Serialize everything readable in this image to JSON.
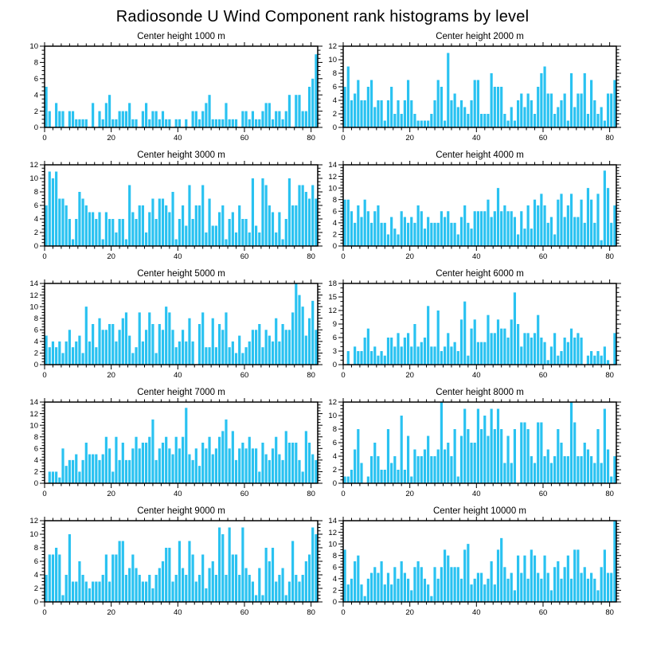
{
  "page": {
    "title": "Radiosonde U Wind Component rank histograms by level"
  },
  "colors": {
    "bar": "#29C2F1",
    "axis": "#000000",
    "background": "#FFFFFF"
  },
  "chart_data": [
    {
      "type": "bar",
      "title": "Center height 1000 m",
      "xlabel": "",
      "ylabel": "",
      "xlim": [
        0,
        82
      ],
      "ylim": [
        0,
        10
      ],
      "xticks": [
        0,
        20,
        40,
        60,
        80
      ],
      "ytick_step": 2,
      "yminor_step": 0.5,
      "xminor_step": 2.5,
      "grid": false,
      "legend": "none",
      "values": [
        5,
        2,
        0,
        3,
        2,
        2,
        0,
        2,
        2,
        1,
        1,
        1,
        1,
        0,
        3,
        0,
        2,
        1,
        3,
        4,
        1,
        1,
        2,
        2,
        2,
        3,
        1,
        1,
        0,
        2,
        3,
        1,
        2,
        2,
        1,
        2,
        1,
        1,
        0,
        1,
        1,
        0,
        1,
        0,
        2,
        2,
        1,
        2,
        3,
        4,
        1,
        1,
        1,
        1,
        3,
        1,
        1,
        1,
        0,
        2,
        2,
        1,
        2,
        1,
        1,
        2,
        3,
        3,
        1,
        2,
        2,
        1,
        2,
        4,
        0,
        4,
        4,
        2,
        2,
        5,
        6,
        9
      ]
    },
    {
      "type": "bar",
      "title": "Center height 2000 m",
      "xlabel": "",
      "ylabel": "",
      "xlim": [
        0,
        82
      ],
      "ylim": [
        0,
        12
      ],
      "xticks": [
        0,
        20,
        40,
        60,
        80
      ],
      "ytick_step": 2,
      "yminor_step": 0.5,
      "xminor_step": 2.5,
      "grid": false,
      "legend": "none",
      "values": [
        6,
        9,
        4,
        5,
        7,
        4,
        4,
        6,
        7,
        3,
        4,
        4,
        1,
        4,
        6,
        2,
        4,
        2,
        4,
        7,
        4,
        2,
        1,
        1,
        1,
        1,
        2,
        4,
        7,
        6,
        1,
        11,
        4,
        5,
        3,
        4,
        3,
        2,
        4,
        7,
        7,
        2,
        2,
        2,
        8,
        6,
        6,
        6,
        2,
        1,
        3,
        1,
        4,
        5,
        3,
        5,
        4,
        2,
        6,
        8,
        9,
        5,
        5,
        2,
        3,
        4,
        5,
        1,
        8,
        3,
        5,
        5,
        8,
        2,
        7,
        4,
        2,
        3,
        1,
        5,
        5,
        7
      ]
    },
    {
      "type": "bar",
      "title": "Center height 3000 m",
      "xlabel": "",
      "ylabel": "",
      "xlim": [
        0,
        82
      ],
      "ylim": [
        0,
        12
      ],
      "xticks": [
        0,
        20,
        40,
        60,
        80
      ],
      "ytick_step": 2,
      "yminor_step": 0.5,
      "xminor_step": 2.5,
      "grid": false,
      "legend": "none",
      "values": [
        6,
        11,
        10,
        11,
        7,
        7,
        6,
        4,
        1,
        4,
        8,
        7,
        6,
        5,
        5,
        4,
        5,
        1,
        5,
        4,
        4,
        2,
        4,
        4,
        1,
        9,
        5,
        4,
        6,
        6,
        2,
        5,
        7,
        4,
        7,
        7,
        6,
        5,
        8,
        1,
        4,
        6,
        3,
        9,
        4,
        6,
        6,
        9,
        2,
        7,
        3,
        3,
        5,
        6,
        1,
        4,
        5,
        2,
        6,
        4,
        4,
        2,
        10,
        3,
        2,
        10,
        9,
        6,
        5,
        2,
        5,
        1,
        4,
        10,
        6,
        6,
        9,
        9,
        8,
        7,
        9,
        7
      ]
    },
    {
      "type": "bar",
      "title": "Center height 4000 m",
      "xlabel": "",
      "ylabel": "",
      "xlim": [
        0,
        82
      ],
      "ylim": [
        0,
        14
      ],
      "xticks": [
        0,
        20,
        40,
        60,
        80
      ],
      "ytick_step": 2,
      "yminor_step": 0.5,
      "xminor_step": 2.5,
      "grid": false,
      "legend": "none",
      "values": [
        8,
        8,
        6,
        4,
        7,
        5,
        8,
        6,
        4,
        6,
        7,
        4,
        4,
        2,
        5,
        3,
        2,
        6,
        5,
        4,
        5,
        4,
        7,
        6,
        3,
        5,
        4,
        4,
        4,
        6,
        5,
        6,
        4,
        4,
        2,
        5,
        7,
        4,
        3,
        6,
        6,
        6,
        6,
        8,
        5,
        6,
        10,
        6,
        7,
        6,
        6,
        5,
        2,
        6,
        3,
        7,
        3,
        8,
        7,
        9,
        7,
        4,
        5,
        2,
        8,
        9,
        5,
        7,
        9,
        5,
        5,
        8,
        4,
        10,
        8,
        4,
        9,
        1,
        13,
        10,
        4,
        7
      ]
    },
    {
      "type": "bar",
      "title": "Center height 5000 m",
      "xlabel": "",
      "ylabel": "",
      "xlim": [
        0,
        82
      ],
      "ylim": [
        0,
        14
      ],
      "xticks": [
        0,
        20,
        40,
        60,
        80
      ],
      "ytick_step": 2,
      "yminor_step": 0.5,
      "xminor_step": 2.5,
      "grid": false,
      "legend": "none",
      "values": [
        5,
        3,
        4,
        3,
        4,
        2,
        4,
        6,
        3,
        4,
        5,
        2,
        10,
        4,
        7,
        3,
        8,
        6,
        6,
        7,
        7,
        4,
        6,
        8,
        9,
        5,
        2,
        3,
        9,
        4,
        6,
        9,
        7,
        2,
        7,
        6,
        10,
        9,
        6,
        3,
        4,
        6,
        4,
        8,
        4,
        0,
        7,
        9,
        3,
        3,
        8,
        3,
        7,
        6,
        9,
        3,
        4,
        2,
        5,
        2,
        3,
        4,
        6,
        6,
        7,
        3,
        6,
        5,
        4,
        8,
        4,
        7,
        6,
        6,
        9,
        14,
        12,
        10,
        5,
        8,
        11,
        6
      ]
    },
    {
      "type": "bar",
      "title": "Center height 6000 m",
      "xlabel": "",
      "ylabel": "",
      "xlim": [
        0,
        82
      ],
      "ylim": [
        0,
        18
      ],
      "xticks": [
        0,
        20,
        40,
        60,
        80
      ],
      "ytick_step": 3,
      "yminor_step": 1,
      "xminor_step": 2.5,
      "grid": false,
      "legend": "none",
      "values": [
        0,
        3,
        0,
        4,
        3,
        3,
        6,
        8,
        3,
        4,
        2,
        3,
        2,
        6,
        6,
        4,
        7,
        4,
        6,
        7,
        4,
        9,
        4,
        5,
        6,
        13,
        4,
        4,
        12,
        3,
        4,
        7,
        4,
        5,
        3,
        10,
        14,
        2,
        8,
        10,
        5,
        5,
        5,
        11,
        7,
        7,
        10,
        8,
        8,
        6,
        10,
        16,
        9,
        4,
        7,
        7,
        6,
        7,
        11,
        6,
        5,
        1,
        4,
        7,
        2,
        3,
        6,
        5,
        8,
        6,
        7,
        6,
        0,
        2,
        3,
        2,
        3,
        2,
        4,
        1,
        0,
        7
      ]
    },
    {
      "type": "bar",
      "title": "Center height 7000 m",
      "xlabel": "",
      "ylabel": "",
      "xlim": [
        0,
        82
      ],
      "ylim": [
        0,
        14
      ],
      "xticks": [
        0,
        20,
        40,
        60,
        80
      ],
      "ytick_step": 2,
      "yminor_step": 0.5,
      "xminor_step": 2.5,
      "grid": false,
      "legend": "none",
      "values": [
        0,
        2,
        2,
        2,
        1,
        6,
        3,
        4,
        4,
        5,
        2,
        4,
        7,
        5,
        5,
        5,
        4,
        5,
        8,
        6,
        2,
        8,
        4,
        7,
        4,
        4,
        6,
        8,
        6,
        7,
        7,
        8,
        11,
        4,
        6,
        7,
        8,
        6,
        5,
        8,
        6,
        8,
        13,
        5,
        4,
        6,
        3,
        7,
        6,
        8,
        5,
        6,
        8,
        9,
        11,
        6,
        9,
        4,
        6,
        7,
        6,
        8,
        6,
        6,
        2,
        7,
        5,
        4,
        6,
        8,
        5,
        4,
        9,
        7,
        7,
        7,
        4,
        2,
        9,
        7,
        5,
        4
      ]
    },
    {
      "type": "bar",
      "title": "Center height 8000 m",
      "xlabel": "",
      "ylabel": "",
      "xlim": [
        0,
        82
      ],
      "ylim": [
        0,
        12
      ],
      "xticks": [
        0,
        20,
        40,
        60,
        80
      ],
      "ytick_step": 2,
      "yminor_step": 0.5,
      "xminor_step": 2.5,
      "grid": false,
      "legend": "none",
      "values": [
        1,
        1,
        2,
        5,
        8,
        3,
        0,
        1,
        4,
        6,
        4,
        2,
        2,
        8,
        3,
        4,
        2,
        10,
        2,
        7,
        1,
        5,
        4,
        4,
        5,
        7,
        4,
        4,
        5,
        12,
        5,
        6,
        4,
        8,
        1,
        7,
        11,
        8,
        6,
        6,
        11,
        8,
        10,
        7,
        11,
        8,
        11,
        8,
        3,
        7,
        3,
        8,
        0,
        9,
        9,
        8,
        4,
        3,
        9,
        9,
        4,
        5,
        3,
        4,
        8,
        6,
        4,
        4,
        12,
        9,
        4,
        4,
        6,
        5,
        4,
        3,
        8,
        3,
        11,
        5,
        1,
        4
      ]
    },
    {
      "type": "bar",
      "title": "Center height 9000 m",
      "xlabel": "",
      "ylabel": "",
      "xlim": [
        0,
        82
      ],
      "ylim": [
        0,
        12
      ],
      "xticks": [
        0,
        20,
        40,
        60,
        80
      ],
      "ytick_step": 2,
      "yminor_step": 0.5,
      "xminor_step": 2.5,
      "grid": false,
      "legend": "none",
      "values": [
        4,
        7,
        7,
        8,
        7,
        1,
        4,
        10,
        3,
        3,
        6,
        4,
        3,
        2,
        3,
        3,
        3,
        4,
        7,
        3,
        7,
        7,
        9,
        9,
        4,
        5,
        7,
        5,
        4,
        3,
        3,
        4,
        2,
        4,
        5,
        6,
        8,
        8,
        3,
        4,
        9,
        5,
        4,
        9,
        7,
        3,
        4,
        7,
        2,
        5,
        6,
        4,
        11,
        10,
        4,
        11,
        7,
        7,
        4,
        11,
        5,
        4,
        3,
        1,
        5,
        1,
        8,
        6,
        8,
        3,
        4,
        5,
        1,
        3,
        9,
        4,
        3,
        4,
        6,
        7,
        11,
        10
      ]
    },
    {
      "type": "bar",
      "title": "Center height 10000 m",
      "xlabel": "",
      "ylabel": "",
      "xlim": [
        0,
        82
      ],
      "ylim": [
        0,
        14
      ],
      "xticks": [
        0,
        20,
        40,
        60,
        80
      ],
      "ytick_step": 2,
      "yminor_step": 0.5,
      "xminor_step": 2.5,
      "grid": false,
      "legend": "none",
      "values": [
        9,
        3,
        4,
        7,
        8,
        3,
        1,
        4,
        5,
        6,
        5,
        7,
        3,
        5,
        3,
        6,
        4,
        7,
        5,
        4,
        2,
        6,
        7,
        6,
        4,
        3,
        1,
        6,
        4,
        6,
        9,
        8,
        6,
        6,
        6,
        4,
        9,
        10,
        3,
        4,
        5,
        5,
        3,
        4,
        7,
        3,
        9,
        11,
        6,
        4,
        5,
        2,
        8,
        5,
        8,
        4,
        9,
        8,
        5,
        4,
        8,
        5,
        2,
        6,
        7,
        4,
        6,
        8,
        4,
        9,
        9,
        5,
        6,
        4,
        5,
        4,
        2,
        6,
        9,
        5,
        5,
        14
      ]
    }
  ]
}
